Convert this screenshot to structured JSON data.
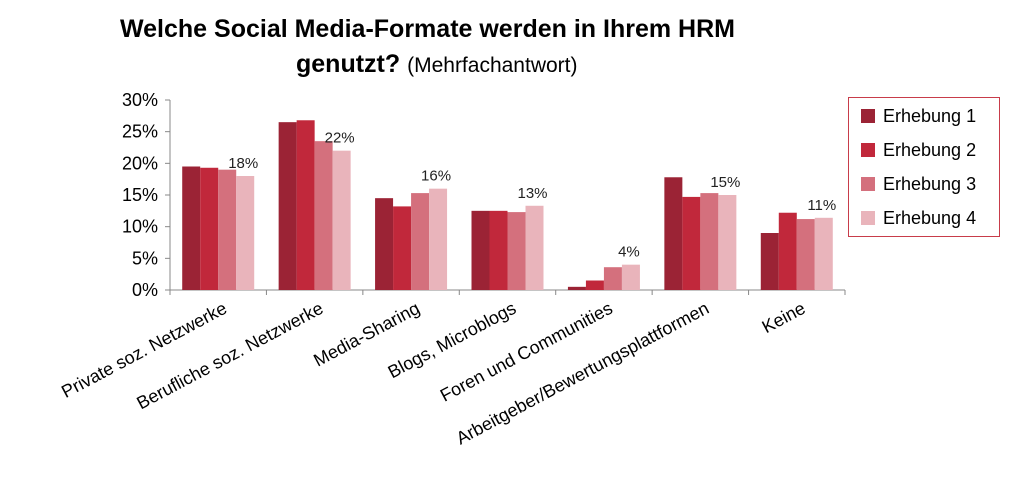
{
  "chart_data": {
    "type": "bar",
    "title": "Welche Social Media-Formate werden in Ihrem HRM genutzt?",
    "subtitle": "(Mehrfachantwort)",
    "categories": [
      "Private soz. Netzwerke",
      "Berufliche soz. Netzwerke",
      "Media-Sharing",
      "Blogs, Microblogs",
      "Foren und Communities",
      "Arbeitgeber/Bewertungsplattformen",
      "Keine"
    ],
    "series": [
      {
        "name": "Erhebung 1",
        "color": "#9b2335",
        "values": [
          19.5,
          26.5,
          14.5,
          12.5,
          0.5,
          17.8,
          9.0
        ]
      },
      {
        "name": "Erhebung 2",
        "color": "#c1283b",
        "values": [
          19.3,
          26.8,
          13.2,
          12.5,
          1.5,
          14.7,
          12.2
        ]
      },
      {
        "name": "Erhebung 3",
        "color": "#d4707d",
        "values": [
          19.0,
          23.5,
          15.3,
          12.3,
          3.6,
          15.3,
          11.2
        ]
      },
      {
        "name": "Erhebung 4",
        "color": "#e9b4bb",
        "values": [
          18.0,
          22.0,
          16.0,
          13.3,
          4.0,
          15.0,
          11.4
        ]
      }
    ],
    "data_labels": [
      "18%",
      "22%",
      "16%",
      "13%",
      "4%",
      "15%",
      "11%"
    ],
    "yticks": [
      "0%",
      "5%",
      "10%",
      "15%",
      "20%",
      "25%",
      "30%"
    ],
    "ylim": [
      0,
      30
    ],
    "legend_position": "right",
    "grid": false
  }
}
